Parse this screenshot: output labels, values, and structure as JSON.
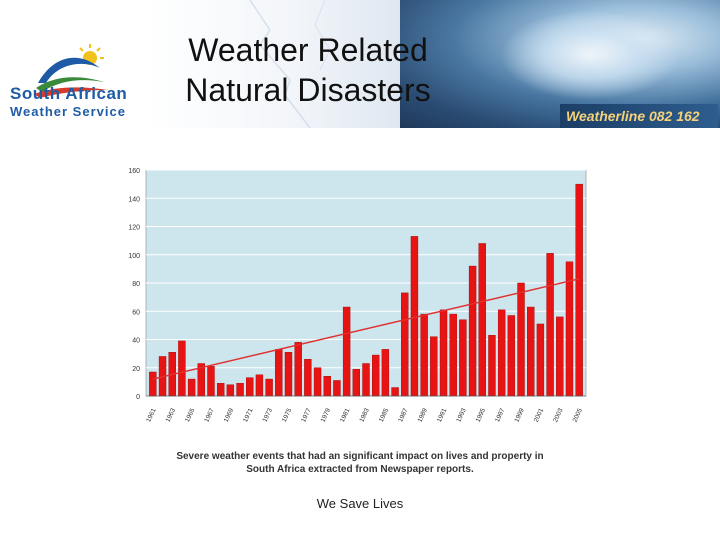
{
  "header": {
    "title_line1": "Weather Related",
    "title_line2": "Natural Disasters",
    "logo_line1": "South African",
    "logo_line2": "Weather Service",
    "weatherline": "Weatherline 082 162"
  },
  "chart_data": {
    "type": "bar",
    "title": "",
    "xlabel": "",
    "ylabel": "",
    "ylim": [
      0,
      160
    ],
    "yticks": [
      0,
      20,
      40,
      60,
      80,
      100,
      120,
      140,
      160
    ],
    "grid": true,
    "bar_color": "#e81414",
    "trend_color": "#e03030",
    "plot_background": "#cde6ee",
    "x_tick_labels": [
      "1961",
      "1963",
      "1965",
      "1967",
      "1969",
      "1971",
      "1973",
      "1975",
      "1977",
      "1979",
      "1981",
      "1983",
      "1985",
      "1987",
      "1989",
      "1991",
      "1993",
      "1995",
      "1997",
      "1999",
      "2001",
      "2003",
      "2005"
    ],
    "categories": [
      "1961",
      "1962",
      "1963",
      "1964",
      "1965",
      "1966",
      "1967",
      "1968",
      "1969",
      "1970",
      "1971",
      "1972",
      "1973",
      "1974",
      "1975",
      "1976",
      "1977",
      "1978",
      "1979",
      "1980",
      "1981",
      "1982",
      "1983",
      "1984",
      "1985",
      "1986",
      "1987",
      "1988",
      "1989",
      "1990",
      "1991",
      "1992",
      "1993",
      "1994",
      "1995",
      "1996",
      "1997",
      "1998",
      "1999",
      "2000",
      "2001",
      "2002",
      "2003",
      "2004",
      "2005"
    ],
    "values": [
      17,
      28,
      31,
      39,
      12,
      23,
      21,
      9,
      8,
      9,
      13,
      15,
      12,
      33,
      31,
      38,
      26,
      20,
      14,
      11,
      63,
      19,
      23,
      29,
      33,
      6,
      73,
      113,
      58,
      42,
      61,
      58,
      54,
      92,
      108,
      43,
      61,
      57,
      80,
      63,
      51,
      101,
      56,
      95,
      150
    ],
    "trend": {
      "start": 12,
      "end": 83
    }
  },
  "caption": {
    "line1": "Severe weather events  that had an significant impact on lives and property in",
    "line2": "South Africa extracted from Newspaper reports."
  },
  "footer": "We Save Lives"
}
